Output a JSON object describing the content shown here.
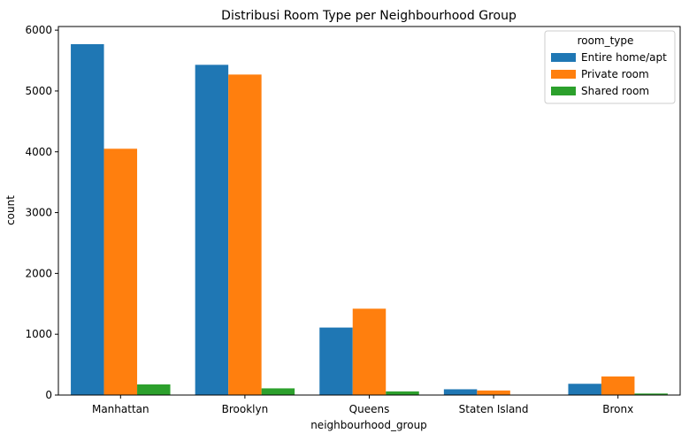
{
  "chart_data": {
    "type": "bar",
    "title": "Distribusi Room Type per Neighbourhood Group",
    "xlabel": "neighbourhood_group",
    "ylabel": "count",
    "categories": [
      "Manhattan",
      "Brooklyn",
      "Queens",
      "Staten Island",
      "Bronx"
    ],
    "ylim": [
      0,
      6000
    ],
    "yticks": [
      0,
      1000,
      2000,
      3000,
      4000,
      5000,
      6000
    ],
    "grid": false,
    "legend": {
      "title": "room_type",
      "placement": "top-right"
    },
    "series": [
      {
        "name": "Entire home/apt",
        "color": "#1f77b4",
        "values": [
          5770,
          5430,
          1110,
          95,
          185
        ]
      },
      {
        "name": "Private room",
        "color": "#ff7f0e",
        "values": [
          4050,
          5270,
          1420,
          75,
          305
        ]
      },
      {
        "name": "Shared room",
        "color": "#2ca02c",
        "values": [
          175,
          110,
          60,
          5,
          25
        ]
      }
    ]
  }
}
